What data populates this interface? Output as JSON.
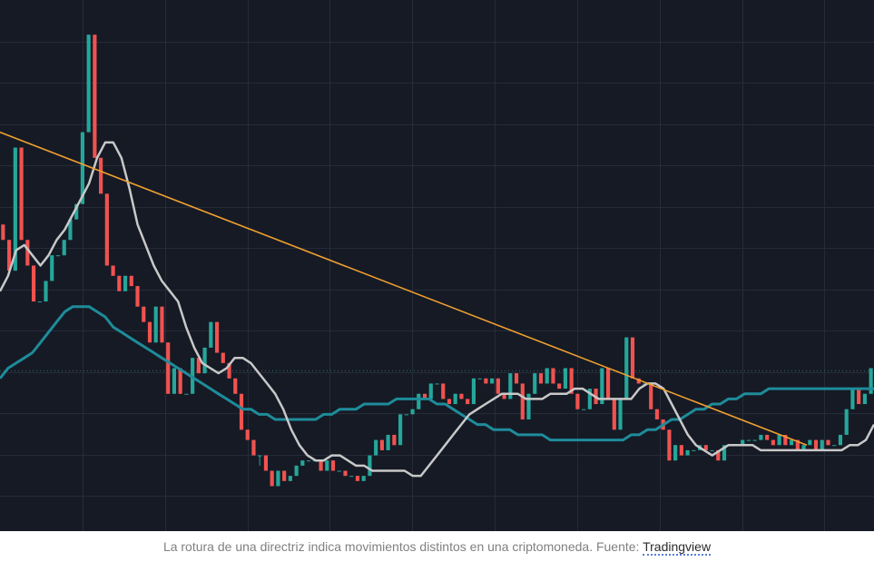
{
  "chart_data": {
    "type": "candlestick",
    "title": "",
    "xlabel": "",
    "ylabel": "",
    "ylim": [
      0,
      100
    ],
    "grid": true,
    "colors": {
      "background": "#161a25",
      "grid": "#262b38",
      "up": "#26a69a",
      "down": "#ef5350",
      "ma_fast": "#c8c8c8",
      "ma_slow": "#1e8c9a",
      "trendline": "#f0a030",
      "price_level": "#2f6f70"
    },
    "candles": [
      [
        58,
        55,
        60,
        50
      ],
      [
        55,
        49,
        58,
        46
      ],
      [
        49,
        73,
        79,
        47
      ],
      [
        73,
        55,
        75,
        52
      ],
      [
        55,
        50,
        60,
        45
      ],
      [
        50,
        43,
        53,
        38
      ],
      [
        43,
        43,
        55,
        42
      ],
      [
        43,
        47,
        50,
        39
      ],
      [
        47,
        52,
        56,
        43
      ],
      [
        52,
        52,
        58,
        49
      ],
      [
        52,
        55,
        60,
        48
      ],
      [
        55,
        59,
        68,
        55
      ],
      [
        59,
        62,
        66,
        59
      ],
      [
        62,
        76,
        98,
        61
      ],
      [
        76,
        95,
        99,
        72
      ],
      [
        95,
        71,
        95,
        65
      ],
      [
        71,
        64,
        74,
        55
      ],
      [
        64,
        50,
        66,
        44
      ],
      [
        50,
        48,
        52,
        41
      ],
      [
        48,
        45,
        52,
        42
      ],
      [
        45,
        48,
        50,
        46
      ],
      [
        48,
        46,
        50,
        42
      ],
      [
        46,
        42,
        44,
        33
      ],
      [
        42,
        39,
        41,
        37
      ],
      [
        39,
        35,
        43,
        32
      ],
      [
        35,
        42,
        43,
        30
      ],
      [
        42,
        35,
        43,
        25
      ],
      [
        35,
        25,
        32,
        25
      ],
      [
        25,
        30,
        29,
        22
      ],
      [
        30,
        25,
        32,
        20
      ],
      [
        25,
        25,
        35,
        23
      ],
      [
        25,
        32,
        38,
        24
      ],
      [
        32,
        29,
        30,
        26
      ],
      [
        29,
        34,
        37,
        23
      ],
      [
        34,
        39,
        38,
        26
      ],
      [
        39,
        33,
        36,
        35
      ],
      [
        33,
        31,
        35,
        24
      ],
      [
        31,
        28,
        33,
        22
      ],
      [
        28,
        25,
        30,
        21
      ],
      [
        25,
        18,
        24,
        12
      ],
      [
        18,
        16,
        20,
        12
      ],
      [
        16,
        13,
        17,
        11
      ],
      [
        13,
        13,
        11,
        7
      ],
      [
        13,
        10,
        12,
        5
      ],
      [
        10,
        7,
        10,
        3
      ],
      [
        7,
        10,
        12,
        5
      ],
      [
        10,
        8,
        11,
        4
      ],
      [
        8,
        9,
        11,
        7
      ],
      [
        9,
        11,
        10,
        8
      ],
      [
        11,
        12,
        13,
        9
      ],
      [
        12,
        12,
        14,
        10
      ],
      [
        12,
        12,
        15,
        10
      ],
      [
        12,
        10,
        13,
        8
      ],
      [
        10,
        12,
        12,
        7
      ],
      [
        12,
        10,
        14,
        7
      ],
      [
        10,
        10,
        11,
        7
      ],
      [
        10,
        9,
        11,
        6
      ],
      [
        9,
        9,
        9,
        6
      ],
      [
        9,
        8,
        12,
        6
      ],
      [
        8,
        9,
        11,
        7
      ],
      [
        9,
        13,
        15,
        6
      ],
      [
        13,
        16,
        17,
        12
      ],
      [
        16,
        14,
        19,
        11
      ],
      [
        14,
        17,
        23,
        13
      ],
      [
        17,
        15,
        17,
        14
      ],
      [
        15,
        21,
        24,
        13
      ],
      [
        21,
        21,
        23,
        14
      ],
      [
        21,
        22,
        24,
        18
      ],
      [
        22,
        25,
        23,
        18
      ],
      [
        25,
        24,
        30,
        20
      ],
      [
        24,
        27,
        30,
        22
      ],
      [
        27,
        27,
        31,
        25
      ],
      [
        27,
        24,
        26,
        21
      ],
      [
        24,
        23,
        24,
        16
      ],
      [
        23,
        25,
        28,
        21
      ],
      [
        25,
        24,
        29,
        23
      ],
      [
        24,
        23,
        28,
        21
      ],
      [
        23,
        28,
        33,
        23
      ],
      [
        28,
        28,
        33,
        20
      ],
      [
        28,
        27,
        28,
        22
      ],
      [
        27,
        28,
        31,
        21
      ],
      [
        28,
        25,
        28,
        22
      ],
      [
        25,
        24,
        26,
        20
      ],
      [
        24,
        29,
        30,
        26
      ],
      [
        29,
        27,
        30,
        23
      ],
      [
        27,
        20,
        28,
        15
      ],
      [
        20,
        25,
        29,
        17
      ],
      [
        25,
        29,
        33,
        21
      ],
      [
        29,
        27,
        28,
        20
      ],
      [
        27,
        30,
        32,
        24
      ],
      [
        30,
        27,
        35,
        27
      ],
      [
        27,
        26,
        28,
        24
      ],
      [
        26,
        30,
        31,
        22
      ],
      [
        30,
        25,
        29,
        24
      ],
      [
        25,
        22,
        30,
        21
      ],
      [
        22,
        22,
        27,
        19
      ],
      [
        22,
        26,
        31,
        21
      ],
      [
        26,
        23,
        27,
        25
      ],
      [
        23,
        30,
        31,
        22
      ],
      [
        30,
        24,
        32,
        22
      ],
      [
        24,
        18,
        25,
        15
      ],
      [
        18,
        24,
        24,
        15
      ],
      [
        24,
        36,
        39,
        22
      ],
      [
        36,
        28,
        37,
        27
      ],
      [
        28,
        27,
        31,
        25
      ],
      [
        27,
        27,
        31,
        24
      ],
      [
        27,
        22,
        25,
        19
      ],
      [
        22,
        20,
        23,
        15
      ],
      [
        20,
        18,
        23,
        15
      ],
      [
        18,
        12,
        17,
        9
      ],
      [
        12,
        15,
        15,
        7
      ],
      [
        15,
        13,
        17,
        11
      ],
      [
        13,
        14,
        16,
        10
      ],
      [
        14,
        14,
        16,
        12
      ],
      [
        14,
        15,
        15,
        11
      ],
      [
        15,
        14,
        16,
        13
      ],
      [
        14,
        14,
        16,
        11
      ],
      [
        14,
        12,
        16,
        10
      ],
      [
        12,
        15,
        16,
        13
      ],
      [
        15,
        15,
        19,
        13
      ],
      [
        15,
        15,
        15,
        11
      ],
      [
        15,
        16,
        17,
        13
      ],
      [
        16,
        16,
        17,
        14
      ],
      [
        16,
        16,
        17,
        13
      ],
      [
        16,
        17,
        17,
        15
      ],
      [
        17,
        16,
        18,
        15
      ],
      [
        16,
        15,
        17,
        14
      ],
      [
        15,
        17,
        20,
        15
      ],
      [
        17,
        15,
        18,
        11
      ],
      [
        15,
        16,
        19,
        14
      ],
      [
        16,
        14,
        15,
        12
      ],
      [
        14,
        15,
        17,
        11
      ],
      [
        15,
        16,
        15,
        12
      ],
      [
        16,
        14,
        18,
        12
      ],
      [
        14,
        16,
        15,
        13
      ],
      [
        16,
        15,
        15,
        13
      ],
      [
        15,
        15,
        17,
        13
      ],
      [
        15,
        17,
        21,
        14
      ],
      [
        17,
        22,
        27,
        13
      ],
      [
        22,
        26,
        29,
        19
      ],
      [
        26,
        23,
        24,
        21
      ],
      [
        23,
        25,
        28,
        20
      ],
      [
        25,
        30,
        34,
        24
      ]
    ],
    "ma_fast": [
      [
        0,
        45
      ],
      [
        1,
        48
      ],
      [
        2,
        53
      ],
      [
        3,
        54
      ],
      [
        4,
        52
      ],
      [
        5,
        50
      ],
      [
        6,
        52
      ],
      [
        7,
        55
      ],
      [
        8,
        57
      ],
      [
        9,
        60
      ],
      [
        10,
        63
      ],
      [
        11,
        66
      ],
      [
        12,
        71
      ],
      [
        13,
        74
      ],
      [
        14,
        74
      ],
      [
        15,
        71
      ],
      [
        16,
        65
      ],
      [
        17,
        58
      ],
      [
        18,
        54
      ],
      [
        19,
        50
      ],
      [
        20,
        47
      ],
      [
        21,
        45
      ],
      [
        22,
        43
      ],
      [
        23,
        38
      ],
      [
        24,
        34
      ],
      [
        25,
        31
      ],
      [
        26,
        30
      ],
      [
        27,
        29
      ],
      [
        28,
        30
      ],
      [
        29,
        32
      ],
      [
        30,
        32
      ],
      [
        31,
        31
      ],
      [
        32,
        29
      ],
      [
        33,
        27
      ],
      [
        34,
        25
      ],
      [
        35,
        22
      ],
      [
        36,
        18
      ],
      [
        37,
        15
      ],
      [
        38,
        13
      ],
      [
        39,
        12
      ],
      [
        40,
        12
      ],
      [
        41,
        13
      ],
      [
        42,
        13
      ],
      [
        43,
        12
      ],
      [
        44,
        11
      ],
      [
        45,
        11
      ],
      [
        46,
        10
      ],
      [
        47,
        10
      ],
      [
        48,
        10
      ],
      [
        49,
        10
      ],
      [
        50,
        10
      ],
      [
        51,
        9
      ],
      [
        52,
        9
      ],
      [
        53,
        11
      ],
      [
        54,
        13
      ],
      [
        55,
        15
      ],
      [
        56,
        17
      ],
      [
        57,
        19
      ],
      [
        58,
        21
      ],
      [
        59,
        22
      ],
      [
        60,
        23
      ],
      [
        61,
        24
      ],
      [
        62,
        25
      ],
      [
        63,
        25
      ],
      [
        64,
        25
      ],
      [
        65,
        24
      ],
      [
        66,
        24
      ],
      [
        67,
        24
      ],
      [
        68,
        25
      ],
      [
        69,
        25
      ],
      [
        70,
        25
      ],
      [
        71,
        26
      ],
      [
        72,
        26
      ],
      [
        73,
        25
      ],
      [
        74,
        24
      ],
      [
        75,
        24
      ],
      [
        76,
        24
      ],
      [
        77,
        24
      ],
      [
        78,
        24
      ],
      [
        79,
        26
      ],
      [
        80,
        27
      ],
      [
        81,
        27
      ],
      [
        82,
        26
      ],
      [
        83,
        23
      ],
      [
        84,
        20
      ],
      [
        85,
        17
      ],
      [
        86,
        15
      ],
      [
        87,
        14
      ],
      [
        88,
        13
      ],
      [
        89,
        14
      ],
      [
        90,
        15
      ],
      [
        91,
        15
      ],
      [
        92,
        15
      ],
      [
        93,
        15
      ],
      [
        94,
        14
      ],
      [
        95,
        14
      ],
      [
        96,
        14
      ],
      [
        97,
        14
      ],
      [
        98,
        14
      ],
      [
        99,
        14
      ],
      [
        100,
        14
      ],
      [
        101,
        14
      ],
      [
        102,
        14
      ],
      [
        103,
        14
      ],
      [
        104,
        14
      ],
      [
        105,
        15
      ],
      [
        106,
        15
      ],
      [
        107,
        16
      ],
      [
        108,
        19
      ]
    ],
    "ma_slow": [
      [
        0,
        28
      ],
      [
        1,
        30
      ],
      [
        2,
        31
      ],
      [
        3,
        32
      ],
      [
        4,
        33
      ],
      [
        5,
        35
      ],
      [
        6,
        37
      ],
      [
        7,
        39
      ],
      [
        8,
        41
      ],
      [
        9,
        42
      ],
      [
        10,
        42
      ],
      [
        11,
        42
      ],
      [
        12,
        41
      ],
      [
        13,
        40
      ],
      [
        14,
        38
      ],
      [
        15,
        37
      ],
      [
        16,
        36
      ],
      [
        17,
        35
      ],
      [
        18,
        34
      ],
      [
        19,
        33
      ],
      [
        20,
        32
      ],
      [
        21,
        31
      ],
      [
        22,
        30
      ],
      [
        23,
        29
      ],
      [
        24,
        28
      ],
      [
        25,
        27
      ],
      [
        26,
        26
      ],
      [
        27,
        25
      ],
      [
        28,
        24
      ],
      [
        29,
        23
      ],
      [
        30,
        22
      ],
      [
        31,
        22
      ],
      [
        32,
        21
      ],
      [
        33,
        21
      ],
      [
        34,
        20
      ],
      [
        35,
        20
      ],
      [
        36,
        20
      ],
      [
        37,
        20
      ],
      [
        38,
        20
      ],
      [
        39,
        20
      ],
      [
        40,
        21
      ],
      [
        41,
        21
      ],
      [
        42,
        22
      ],
      [
        43,
        22
      ],
      [
        44,
        22
      ],
      [
        45,
        23
      ],
      [
        46,
        23
      ],
      [
        47,
        23
      ],
      [
        48,
        23
      ],
      [
        49,
        24
      ],
      [
        50,
        24
      ],
      [
        51,
        24
      ],
      [
        52,
        24
      ],
      [
        53,
        24
      ],
      [
        54,
        23
      ],
      [
        55,
        23
      ],
      [
        56,
        22
      ],
      [
        57,
        21
      ],
      [
        58,
        20
      ],
      [
        59,
        19
      ],
      [
        60,
        19
      ],
      [
        61,
        18
      ],
      [
        62,
        18
      ],
      [
        63,
        18
      ],
      [
        64,
        17
      ],
      [
        65,
        17
      ],
      [
        66,
        17
      ],
      [
        67,
        17
      ],
      [
        68,
        16
      ],
      [
        69,
        16
      ],
      [
        70,
        16
      ],
      [
        71,
        16
      ],
      [
        72,
        16
      ],
      [
        73,
        16
      ],
      [
        74,
        16
      ],
      [
        75,
        16
      ],
      [
        76,
        16
      ],
      [
        77,
        16
      ],
      [
        78,
        17
      ],
      [
        79,
        17
      ],
      [
        80,
        18
      ],
      [
        81,
        18
      ],
      [
        82,
        19
      ],
      [
        83,
        20
      ],
      [
        84,
        20
      ],
      [
        85,
        21
      ],
      [
        86,
        22
      ],
      [
        87,
        22
      ],
      [
        88,
        23
      ],
      [
        89,
        23
      ],
      [
        90,
        24
      ],
      [
        91,
        24
      ],
      [
        92,
        25
      ],
      [
        93,
        25
      ],
      [
        94,
        25
      ],
      [
        95,
        26
      ],
      [
        96,
        26
      ],
      [
        97,
        26
      ],
      [
        98,
        26
      ],
      [
        99,
        26
      ],
      [
        100,
        26
      ],
      [
        101,
        26
      ],
      [
        102,
        26
      ],
      [
        103,
        26
      ],
      [
        104,
        26
      ],
      [
        105,
        26
      ],
      [
        106,
        26
      ],
      [
        107,
        26
      ],
      [
        108,
        26
      ]
    ],
    "trendline": [
      [
        0,
        76
      ],
      [
        132,
        15
      ]
    ],
    "price_level": 29.5
  },
  "caption": {
    "text": "La rotura de una directriz indica movimientos distintos en una criptomoneda. Fuente: ",
    "source_link": "Tradingview"
  }
}
